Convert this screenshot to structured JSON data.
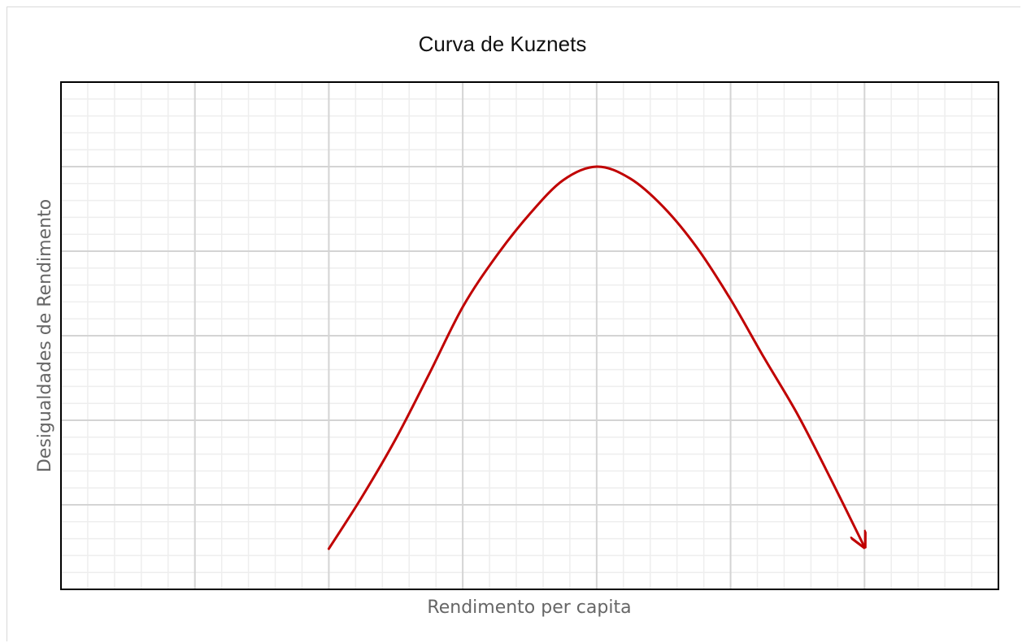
{
  "chart_data": {
    "type": "line",
    "title": "Curva de Kuznets",
    "x_label": "Rendimento per capita",
    "y_label": "Desigualdades de Rendimento",
    "xlim": [
      0,
      7
    ],
    "ylim": [
      0,
      6
    ],
    "xticks": [
      1,
      2,
      3,
      4,
      5,
      6
    ],
    "yticks": [
      1,
      2,
      3,
      4,
      5
    ],
    "grid": true,
    "minor_grid": true,
    "x": [
      2,
      2.25,
      2.5,
      2.75,
      3,
      3.25,
      3.5,
      3.75,
      4,
      4.25,
      4.5,
      4.75,
      5,
      5.25,
      5.5,
      5.75,
      6
    ],
    "series": [
      {
        "color": "#c00000",
        "arrow": true,
        "values": [
          0.48,
          1.1,
          1.78,
          2.55,
          3.34,
          3.94,
          4.44,
          4.84,
          5.0,
          4.86,
          4.52,
          4.04,
          3.43,
          2.74,
          2.07,
          1.3,
          0.5
        ]
      }
    ]
  }
}
